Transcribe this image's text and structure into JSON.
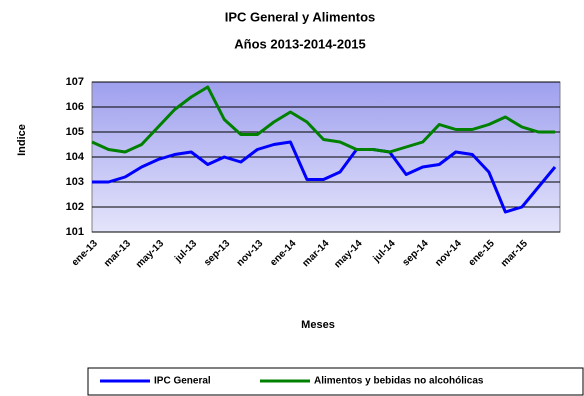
{
  "chart_data": {
    "type": "line",
    "title": "IPC General y Alimentos",
    "subtitle": "Años 2013-2014-2015",
    "y_label": "Indice",
    "x_label": "Meses",
    "categories": [
      "ene-13",
      null,
      "mar-13",
      null,
      "may-13",
      null,
      "jul-13",
      null,
      "sep-13",
      null,
      "nov-13",
      null,
      "ene-14",
      null,
      "mar-14",
      null,
      "may-14",
      null,
      "jul-14",
      null,
      "sep-14",
      null,
      "nov-14",
      null,
      "ene-15",
      null,
      "mar-15",
      null,
      null
    ],
    "series": [
      {
        "name": "IPC General",
        "color": "#0000ff",
        "values": [
          103.0,
          103.0,
          103.2,
          103.6,
          103.9,
          104.1,
          104.2,
          103.7,
          104.0,
          103.8,
          104.3,
          104.5,
          104.6,
          103.1,
          103.1,
          103.4,
          104.3,
          104.3,
          104.2,
          103.3,
          103.6,
          103.7,
          104.2,
          104.1,
          103.4,
          101.8,
          102.0,
          102.8,
          103.6
        ]
      },
      {
        "name": "Alimentos y bebidas no alcohólicas",
        "color": "#008000",
        "values": [
          104.6,
          104.3,
          104.2,
          104.5,
          105.2,
          105.9,
          106.4,
          106.8,
          105.5,
          104.9,
          104.9,
          105.4,
          105.8,
          105.4,
          104.7,
          104.6,
          104.3,
          104.3,
          104.2,
          104.4,
          104.6,
          105.3,
          105.1,
          105.1,
          105.3,
          105.6,
          105.2,
          105.0,
          105.0
        ]
      }
    ],
    "ylim": [
      101,
      107
    ],
    "yticks": [
      101,
      102,
      103,
      104,
      105,
      106,
      107
    ],
    "grid": true
  }
}
